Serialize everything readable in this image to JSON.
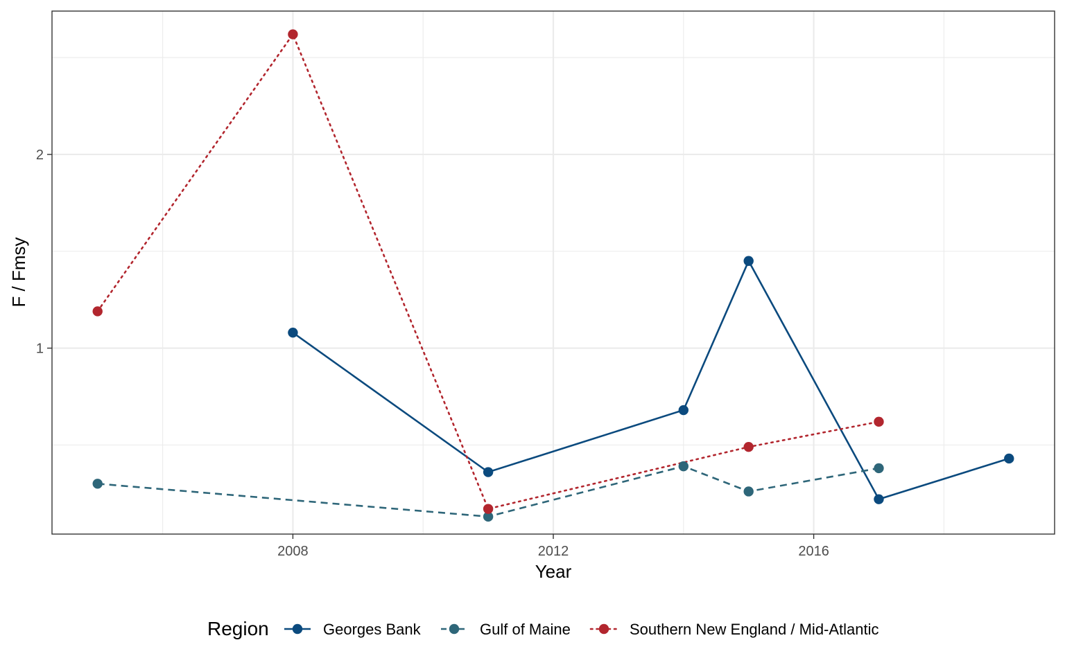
{
  "chart_data": {
    "type": "line",
    "title": "",
    "xlabel": "Year",
    "ylabel": "F / Fmsy",
    "xlim": [
      2004.3,
      2019.7
    ],
    "ylim": [
      0.04,
      2.74
    ],
    "x_ticks": [
      2008,
      2012,
      2016
    ],
    "x_tick_labels": [
      "2008",
      "2012",
      "2016"
    ],
    "x_minor_ticks": [
      2006,
      2010,
      2014,
      2018
    ],
    "y_ticks": [
      1,
      2
    ],
    "y_tick_labels": [
      "1",
      "2"
    ],
    "y_minor_ticks": [
      0.5,
      1.5,
      2.5
    ],
    "grid": true,
    "legend_title": "Region",
    "legend_position": "bottom",
    "series": [
      {
        "name": "Georges Bank",
        "color": "#0b4a7e",
        "line": "solid",
        "x": [
          2008,
          2011,
          2014,
          2015,
          2017,
          2019
        ],
        "y": [
          1.08,
          0.36,
          0.68,
          1.45,
          0.22,
          0.43
        ]
      },
      {
        "name": "Gulf of Maine",
        "color": "#2e6679",
        "line": "dashed",
        "x": [
          2005,
          2011,
          2014,
          2015,
          2017
        ],
        "y": [
          0.3,
          0.13,
          0.39,
          0.26,
          0.38
        ]
      },
      {
        "name": "Southern New England / Mid-Atlantic",
        "color": "#b2262e",
        "line": "dotted",
        "x": [
          2005,
          2008,
          2011,
          2015,
          2017
        ],
        "y": [
          1.19,
          2.62,
          0.17,
          0.49,
          0.62
        ]
      }
    ]
  }
}
